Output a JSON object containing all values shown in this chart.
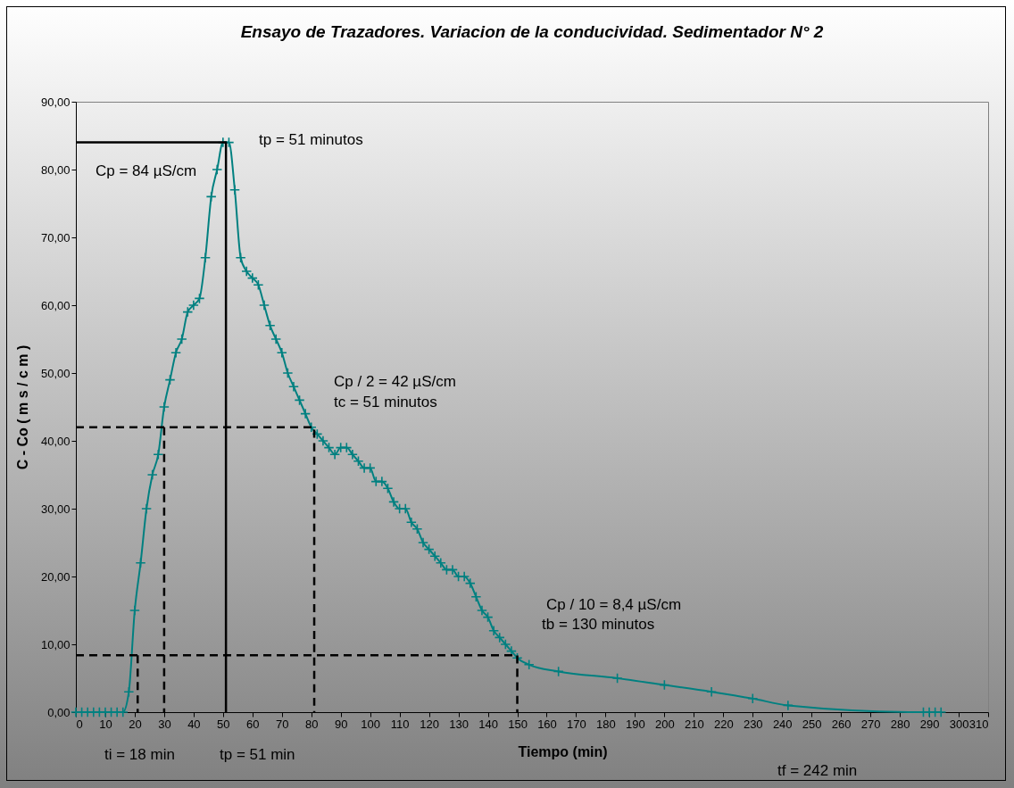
{
  "chart_data": {
    "type": "line",
    "title": "Ensayo de Trazadores. Variacion de la conducividad. Sedimentador N° 2",
    "xlabel": "Tiempo (min)",
    "ylabel": "C - Co ( m s / c m )",
    "annotations": [
      "tp = 51 minutos",
      "Cp = 84 µS/cm",
      "Cp / 2 = 42 µS/cm",
      "tc = 51 minutos",
      "Cp / 10 = 8,4 µS/cm",
      "tb = 130 minutos",
      "ti = 18 min",
      "tp = 51 min",
      "tf = 242 min"
    ],
    "xlim": [
      0,
      310
    ],
    "xticks": [
      0,
      10,
      20,
      30,
      40,
      50,
      60,
      70,
      80,
      90,
      100,
      110,
      120,
      130,
      140,
      150,
      160,
      170,
      180,
      190,
      200,
      210,
      220,
      230,
      240,
      250,
      260,
      270,
      280,
      290,
      300,
      310
    ],
    "ylim": [
      0,
      90
    ],
    "yticks": [
      {
        "value": 0,
        "label": "0,00"
      },
      {
        "value": 10,
        "label": "10,00"
      },
      {
        "value": 20,
        "label": "20,00"
      },
      {
        "value": 30,
        "label": "30,00"
      },
      {
        "value": 40,
        "label": "40,00"
      },
      {
        "value": 50,
        "label": "50,00"
      },
      {
        "value": 60,
        "label": "60,00"
      },
      {
        "value": 70,
        "label": "70,00"
      },
      {
        "value": 80,
        "label": "80,00"
      },
      {
        "value": 90,
        "label": "90,00"
      }
    ],
    "grid": false,
    "series": [
      {
        "color": "#008080",
        "marker": "cross",
        "line_style": "solid",
        "x": [
          0,
          2,
          4,
          6,
          8,
          10,
          12,
          14,
          16,
          18,
          20,
          22,
          24,
          26,
          28,
          30,
          32,
          34,
          36,
          38,
          40,
          42,
          44,
          46,
          48,
          50,
          52,
          54,
          56,
          58,
          60,
          62,
          64,
          66,
          68,
          70,
          72,
          74,
          76,
          78,
          80,
          82,
          84,
          86,
          88,
          90,
          92,
          94,
          96,
          98,
          100,
          102,
          104,
          106,
          108,
          110,
          112,
          114,
          116,
          118,
          120,
          122,
          124,
          126,
          128,
          130,
          132,
          134,
          136,
          138,
          140,
          142,
          144,
          146,
          148,
          150,
          154,
          164,
          184,
          200,
          216,
          230,
          242,
          288,
          290,
          292,
          294
        ],
        "values": [
          0,
          0,
          0,
          0,
          0,
          0,
          0,
          0,
          0,
          3,
          15,
          22,
          30,
          35,
          38,
          45,
          49,
          53,
          55,
          59,
          60,
          61,
          67,
          76,
          80,
          84,
          84,
          77,
          67,
          65,
          64,
          63,
          60,
          57,
          55,
          53,
          50,
          48,
          46,
          44,
          42,
          41,
          40,
          39,
          38,
          39,
          39,
          38,
          37,
          36,
          36,
          34,
          34,
          33,
          31,
          30,
          30,
          28,
          27,
          25,
          24,
          23,
          22,
          21,
          21,
          20,
          20,
          19,
          17,
          15,
          14,
          12,
          11,
          10,
          9,
          8,
          7,
          6,
          5,
          4,
          3,
          2,
          1,
          0,
          0,
          0,
          0
        ]
      },
      {
        "color": "#000000",
        "marker": "none",
        "line_style": "solid",
        "x": [
          0,
          51,
          51
        ],
        "values": [
          84,
          84,
          0
        ]
      },
      {
        "color": "#000000",
        "marker": "none",
        "line_style": "dashed",
        "x": [
          0,
          81,
          81
        ],
        "values": [
          42,
          42,
          0
        ]
      },
      {
        "color": "#000000",
        "marker": "none",
        "line_style": "dashed",
        "x": [
          30,
          30
        ],
        "values": [
          42,
          0
        ]
      },
      {
        "color": "#000000",
        "marker": "none",
        "line_style": "dashed",
        "x": [
          0,
          150,
          150
        ],
        "values": [
          8.4,
          8.4,
          0
        ]
      },
      {
        "color": "#000000",
        "marker": "none",
        "line_style": "dashed",
        "x": [
          21,
          21
        ],
        "values": [
          8.4,
          0
        ]
      }
    ]
  }
}
